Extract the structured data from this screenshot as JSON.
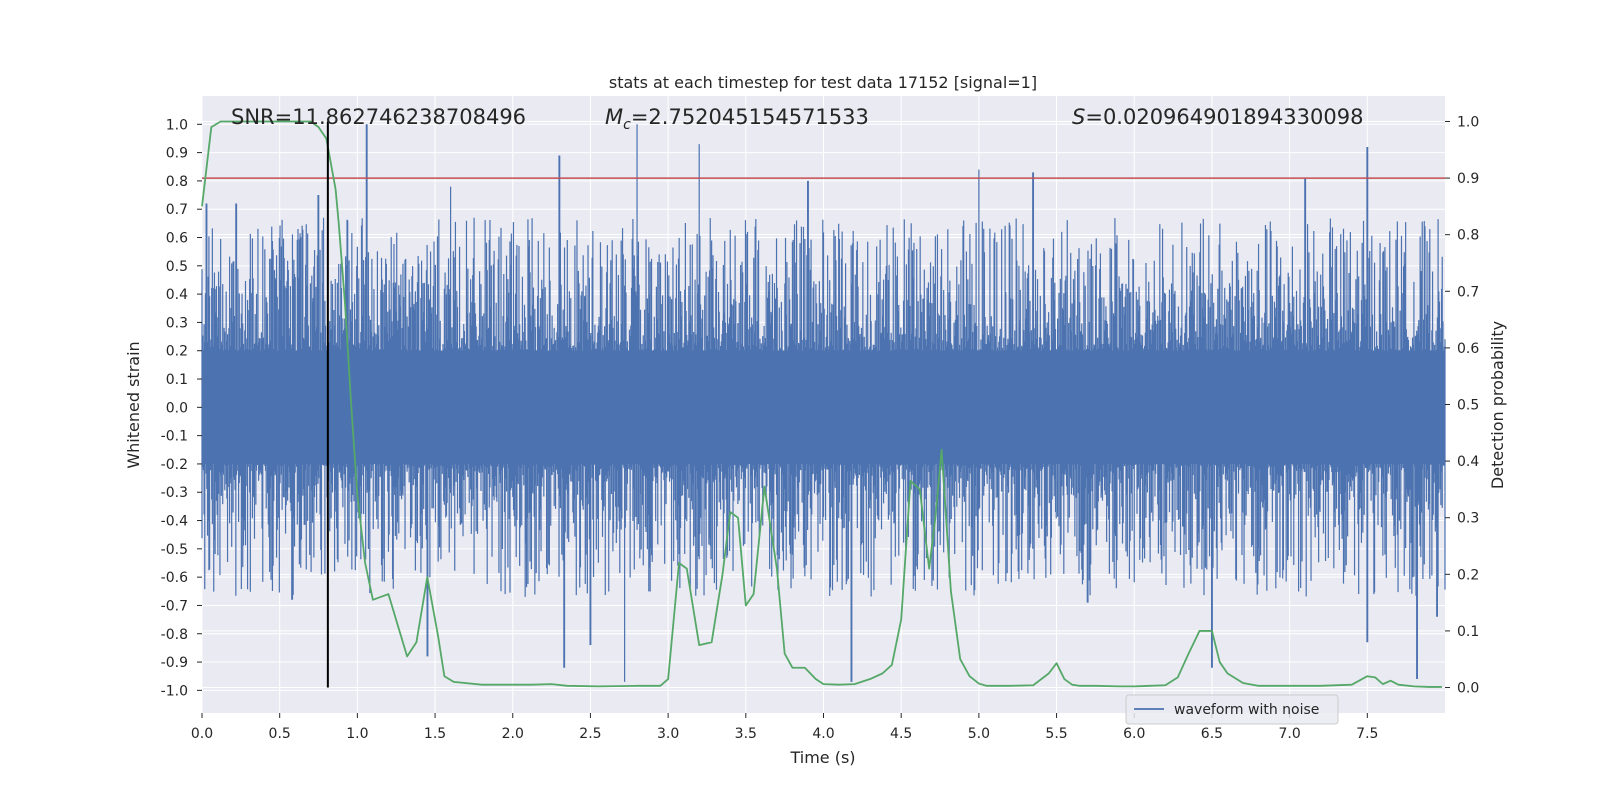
{
  "chart_data": {
    "type": "line",
    "title": "stats at each timestep for test data 17152 [signal=1]",
    "xlabel": "Time (s)",
    "ylabel": "Whitened strain",
    "y2label": "Detection probability",
    "xlim": [
      0.0,
      8.0
    ],
    "ylim": [
      -1.08,
      1.1
    ],
    "y2lim": [
      -0.045,
      1.045
    ],
    "xticks": [
      "0.0",
      "0.5",
      "1.0",
      "1.5",
      "2.0",
      "2.5",
      "3.0",
      "3.5",
      "4.0",
      "4.5",
      "5.0",
      "5.5",
      "6.0",
      "6.5",
      "7.0",
      "7.5"
    ],
    "yticks": [
      "1.0",
      "0.9",
      "0.8",
      "0.7",
      "0.6",
      "0.5",
      "0.4",
      "0.3",
      "0.2",
      "0.1",
      "0.0",
      "-0.1",
      "-0.2",
      "-0.3",
      "-0.4",
      "-0.5",
      "-0.6",
      "-0.7",
      "-0.8",
      "-0.9",
      "-1.0"
    ],
    "y2ticks": [
      "1.0",
      "0.9",
      "0.8",
      "0.7",
      "0.6",
      "0.5",
      "0.4",
      "0.3",
      "0.2",
      "0.1",
      "0.0"
    ],
    "grid": true,
    "legend_position": "lower-right",
    "annotations": {
      "snr": "SNR=11.862746238708496",
      "mc_prefix": "M",
      "mc_sub": "c",
      "mc_value": "=2.752045154571533",
      "s_prefix": "S",
      "s_value": "=0.020964901894330098"
    },
    "series": [
      {
        "name": "waveform with noise",
        "axis": "left",
        "color": "#4c72b0",
        "style": "dense-noise",
        "core_amplitude": 0.2,
        "envelope_typical": 0.55,
        "peaks": [
          {
            "x": 0.03,
            "y": 0.72
          },
          {
            "x": 0.22,
            "y": 0.72
          },
          {
            "x": 0.75,
            "y": 0.75
          },
          {
            "x": 1.06,
            "y": 1.0
          },
          {
            "x": 1.6,
            "y": 0.78
          },
          {
            "x": 2.3,
            "y": 0.89
          },
          {
            "x": 2.8,
            "y": 1.0
          },
          {
            "x": 3.2,
            "y": 0.93
          },
          {
            "x": 3.9,
            "y": 0.8
          },
          {
            "x": 5.0,
            "y": 0.84
          },
          {
            "x": 5.35,
            "y": 0.83
          },
          {
            "x": 7.1,
            "y": 0.81
          },
          {
            "x": 7.5,
            "y": 0.92
          },
          {
            "x": 0.58,
            "y": -0.68
          },
          {
            "x": 1.45,
            "y": -0.88
          },
          {
            "x": 2.33,
            "y": -0.92
          },
          {
            "x": 2.5,
            "y": -0.84
          },
          {
            "x": 2.72,
            "y": -0.97
          },
          {
            "x": 4.18,
            "y": -0.97
          },
          {
            "x": 5.7,
            "y": -0.69
          },
          {
            "x": 6.5,
            "y": -0.92
          },
          {
            "x": 7.5,
            "y": -0.83
          },
          {
            "x": 7.82,
            "y": -0.96
          },
          {
            "x": 7.95,
            "y": -0.74
          }
        ]
      },
      {
        "name": "Detection probability",
        "axis": "right",
        "color": "#55a868",
        "x": [
          0.0,
          0.06,
          0.12,
          0.2,
          0.4,
          0.6,
          0.7,
          0.75,
          0.8,
          0.86,
          0.88,
          0.92,
          0.96,
          1.0,
          1.05,
          1.1,
          1.15,
          1.2,
          1.32,
          1.38,
          1.45,
          1.52,
          1.56,
          1.62,
          1.8,
          2.0,
          2.12,
          2.25,
          2.35,
          2.55,
          2.8,
          2.95,
          3.0,
          3.07,
          3.12,
          3.2,
          3.28,
          3.35,
          3.4,
          3.45,
          3.5,
          3.55,
          3.62,
          3.7,
          3.75,
          3.8,
          3.88,
          3.95,
          4.0,
          4.1,
          4.2,
          4.3,
          4.38,
          4.44,
          4.5,
          4.56,
          4.62,
          4.68,
          4.72,
          4.76,
          4.82,
          4.88,
          4.94,
          5.0,
          5.05,
          5.1,
          5.2,
          5.35,
          5.45,
          5.5,
          5.55,
          5.6,
          5.65,
          5.75,
          5.9,
          6.0,
          6.1,
          6.2,
          6.28,
          6.35,
          6.42,
          6.5,
          6.55,
          6.6,
          6.7,
          6.8,
          7.0,
          7.2,
          7.4,
          7.5,
          7.55,
          7.6,
          7.65,
          7.7,
          7.8,
          7.9,
          7.98
        ],
        "values": [
          0.85,
          0.99,
          1.0,
          1.0,
          1.0,
          1.0,
          1.0,
          0.99,
          0.97,
          0.88,
          0.82,
          0.68,
          0.5,
          0.34,
          0.22,
          0.155,
          0.16,
          0.165,
          0.055,
          0.08,
          0.195,
          0.09,
          0.02,
          0.01,
          0.005,
          0.005,
          0.005,
          0.006,
          0.003,
          0.002,
          0.003,
          0.003,
          0.015,
          0.22,
          0.21,
          0.075,
          0.08,
          0.2,
          0.31,
          0.3,
          0.145,
          0.165,
          0.355,
          0.21,
          0.06,
          0.035,
          0.035,
          0.015,
          0.006,
          0.005,
          0.006,
          0.015,
          0.025,
          0.04,
          0.12,
          0.365,
          0.35,
          0.21,
          0.3,
          0.42,
          0.17,
          0.05,
          0.02,
          0.007,
          0.003,
          0.003,
          0.003,
          0.004,
          0.025,
          0.043,
          0.015,
          0.005,
          0.003,
          0.003,
          0.002,
          0.002,
          0.003,
          0.004,
          0.018,
          0.06,
          0.1,
          0.1,
          0.045,
          0.025,
          0.008,
          0.003,
          0.003,
          0.003,
          0.005,
          0.02,
          0.018,
          0.006,
          0.012,
          0.005,
          0.002,
          0.001,
          0.001
        ]
      }
    ],
    "threshold": {
      "axis": "right",
      "value": 0.9,
      "color": "#c44e52"
    },
    "marker_line": {
      "axis": "right",
      "x": 0.81,
      "from": 0.0,
      "to": 1.0,
      "color": "#000000"
    }
  }
}
